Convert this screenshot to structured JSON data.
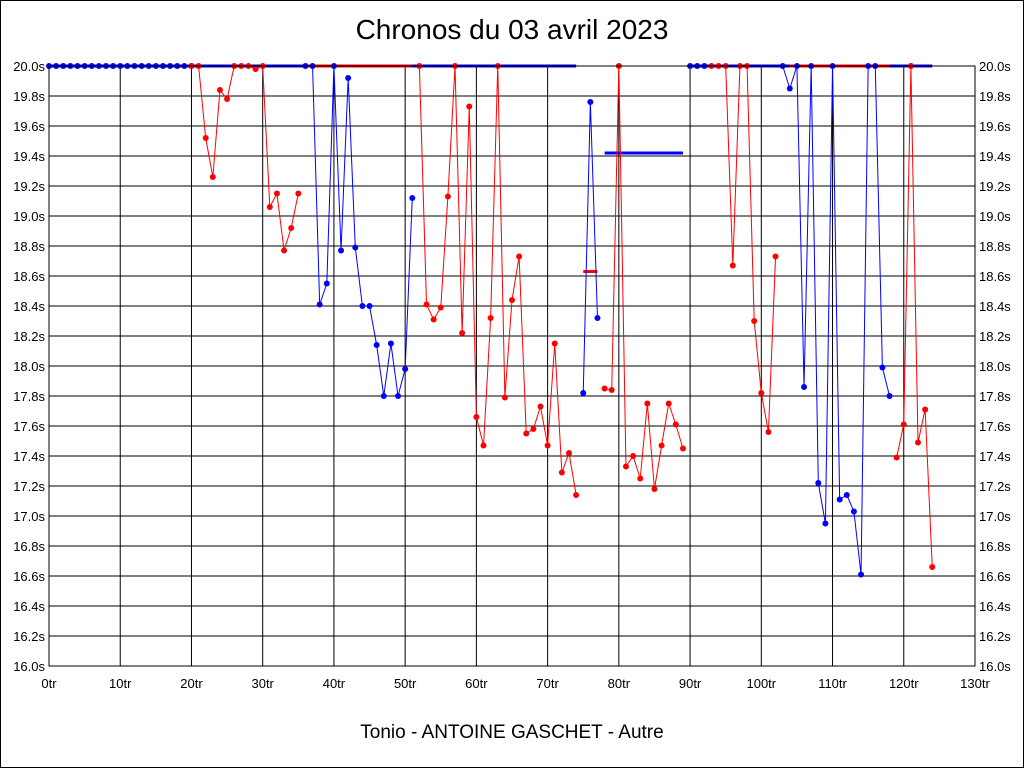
{
  "chart_data": {
    "type": "line",
    "title": "Chronos du 03 avril 2023",
    "footer": "Tonio - ANTOINE GASCHET - Autre",
    "xlim": [
      0,
      130
    ],
    "ylim": [
      16.0,
      20.0
    ],
    "x_ticks": [
      0,
      10,
      20,
      30,
      40,
      50,
      60,
      70,
      80,
      90,
      100,
      110,
      120,
      130
    ],
    "y_ticks": [
      16.0,
      16.2,
      16.4,
      16.6,
      16.8,
      17.0,
      17.2,
      17.4,
      17.6,
      17.8,
      18.0,
      18.2,
      18.4,
      18.6,
      18.8,
      19.0,
      19.2,
      19.4,
      19.6,
      19.8,
      20.0
    ],
    "x_tick_suffix": "tr",
    "y_tick_suffix": "s",
    "grid": true,
    "series": [
      {
        "color": "#0000ff",
        "points": [
          [
            0,
            20.0
          ],
          [
            1,
            20.0
          ],
          [
            2,
            20.0
          ],
          [
            3,
            20.0
          ],
          [
            4,
            20.0
          ],
          [
            5,
            20.0
          ],
          [
            6,
            20.0
          ],
          [
            7,
            20.0
          ],
          [
            8,
            20.0
          ],
          [
            9,
            20.0
          ],
          [
            10,
            20.0
          ],
          [
            11,
            20.0
          ],
          [
            12,
            20.0
          ],
          [
            13,
            20.0
          ],
          [
            14,
            20.0
          ],
          [
            15,
            20.0
          ],
          [
            16,
            20.0
          ],
          [
            17,
            20.0
          ],
          [
            18,
            20.0
          ],
          [
            19,
            20.0
          ],
          [
            20,
            20.0
          ],
          [
            36,
            20.0
          ],
          [
            37,
            20.0
          ],
          [
            38,
            18.41
          ],
          [
            39,
            18.55
          ],
          [
            40,
            20.0
          ],
          [
            41,
            18.77
          ],
          [
            42,
            19.92
          ],
          [
            43,
            18.79
          ],
          [
            44,
            18.4
          ],
          [
            45,
            18.4
          ],
          [
            46,
            18.14
          ],
          [
            47,
            17.8
          ],
          [
            48,
            18.15
          ],
          [
            49,
            17.8
          ],
          [
            50,
            17.98
          ],
          [
            51,
            19.12
          ],
          [
            75,
            17.82
          ],
          [
            76,
            19.76
          ],
          [
            77,
            18.32
          ],
          [
            90,
            20.0
          ],
          [
            91,
            20.0
          ],
          [
            92,
            20.0
          ],
          [
            103,
            20.0
          ],
          [
            104,
            19.85
          ],
          [
            105,
            20.0
          ],
          [
            106,
            17.86
          ],
          [
            107,
            20.0
          ],
          [
            108,
            17.22
          ],
          [
            109,
            16.95
          ],
          [
            110,
            20.0
          ],
          [
            111,
            17.11
          ],
          [
            112,
            17.14
          ],
          [
            113,
            17.03
          ],
          [
            114,
            16.61
          ],
          [
            115,
            20.0
          ],
          [
            116,
            20.0
          ],
          [
            117,
            17.99
          ],
          [
            118,
            17.8
          ],
          [
            121,
            20.0
          ]
        ]
      },
      {
        "color": "#ff0000",
        "points": [
          [
            20,
            20.0
          ],
          [
            21,
            20.0
          ],
          [
            22,
            19.52
          ],
          [
            23,
            19.26
          ],
          [
            24,
            19.84
          ],
          [
            25,
            19.78
          ],
          [
            26,
            20.0
          ],
          [
            27,
            20.0
          ],
          [
            28,
            20.0
          ],
          [
            29,
            19.98
          ],
          [
            30,
            20.0
          ],
          [
            31,
            19.06
          ],
          [
            32,
            19.15
          ],
          [
            33,
            18.77
          ],
          [
            34,
            18.92
          ],
          [
            35,
            19.15
          ],
          [
            52,
            20.0
          ],
          [
            53,
            18.41
          ],
          [
            54,
            18.31
          ],
          [
            55,
            18.39
          ],
          [
            56,
            19.13
          ],
          [
            57,
            20.0
          ],
          [
            58,
            18.22
          ],
          [
            59,
            19.73
          ],
          [
            60,
            17.66
          ],
          [
            61,
            17.47
          ],
          [
            62,
            18.32
          ],
          [
            63,
            20.0
          ],
          [
            64,
            17.79
          ],
          [
            65,
            18.44
          ],
          [
            66,
            18.73
          ],
          [
            67,
            17.55
          ],
          [
            68,
            17.58
          ],
          [
            69,
            17.73
          ],
          [
            70,
            17.47
          ],
          [
            71,
            18.15
          ],
          [
            72,
            17.29
          ],
          [
            73,
            17.42
          ],
          [
            74,
            17.14
          ],
          [
            78,
            17.85
          ],
          [
            79,
            17.84
          ],
          [
            80,
            20.0
          ],
          [
            81,
            17.33
          ],
          [
            82,
            17.4
          ],
          [
            83,
            17.25
          ],
          [
            84,
            17.75
          ],
          [
            85,
            17.18
          ],
          [
            86,
            17.47
          ],
          [
            87,
            17.75
          ],
          [
            88,
            17.61
          ],
          [
            89,
            17.45
          ],
          [
            93,
            20.0
          ],
          [
            94,
            20.0
          ],
          [
            95,
            20.0
          ],
          [
            96,
            18.67
          ],
          [
            97,
            20.0
          ],
          [
            98,
            20.0
          ],
          [
            99,
            18.3
          ],
          [
            100,
            17.82
          ],
          [
            101,
            17.56
          ],
          [
            102,
            18.73
          ],
          [
            119,
            17.39
          ],
          [
            120,
            17.61
          ],
          [
            121,
            20.0
          ],
          [
            122,
            17.49
          ],
          [
            123,
            17.71
          ],
          [
            124,
            16.66
          ]
        ]
      }
    ],
    "reference_lines": [
      {
        "color": "#0000ff",
        "x": [
          0,
          74
        ],
        "y": 20.0
      },
      {
        "color": "#0000ff",
        "x": [
          90,
          104
        ],
        "y": 20.0
      },
      {
        "color": "#0000ff",
        "x": [
          117,
          124
        ],
        "y": 20.0
      },
      {
        "color": "#ff0000",
        "x": [
          36,
          51
        ],
        "y": 20.0
      },
      {
        "color": "#ff0000",
        "x": [
          104,
          118
        ],
        "y": 20.0
      },
      {
        "color": "#0000ff",
        "x": [
          78,
          89
        ],
        "y": 19.42
      },
      {
        "color": "#ff0000",
        "x": [
          75,
          77
        ],
        "y": 18.63
      }
    ]
  }
}
